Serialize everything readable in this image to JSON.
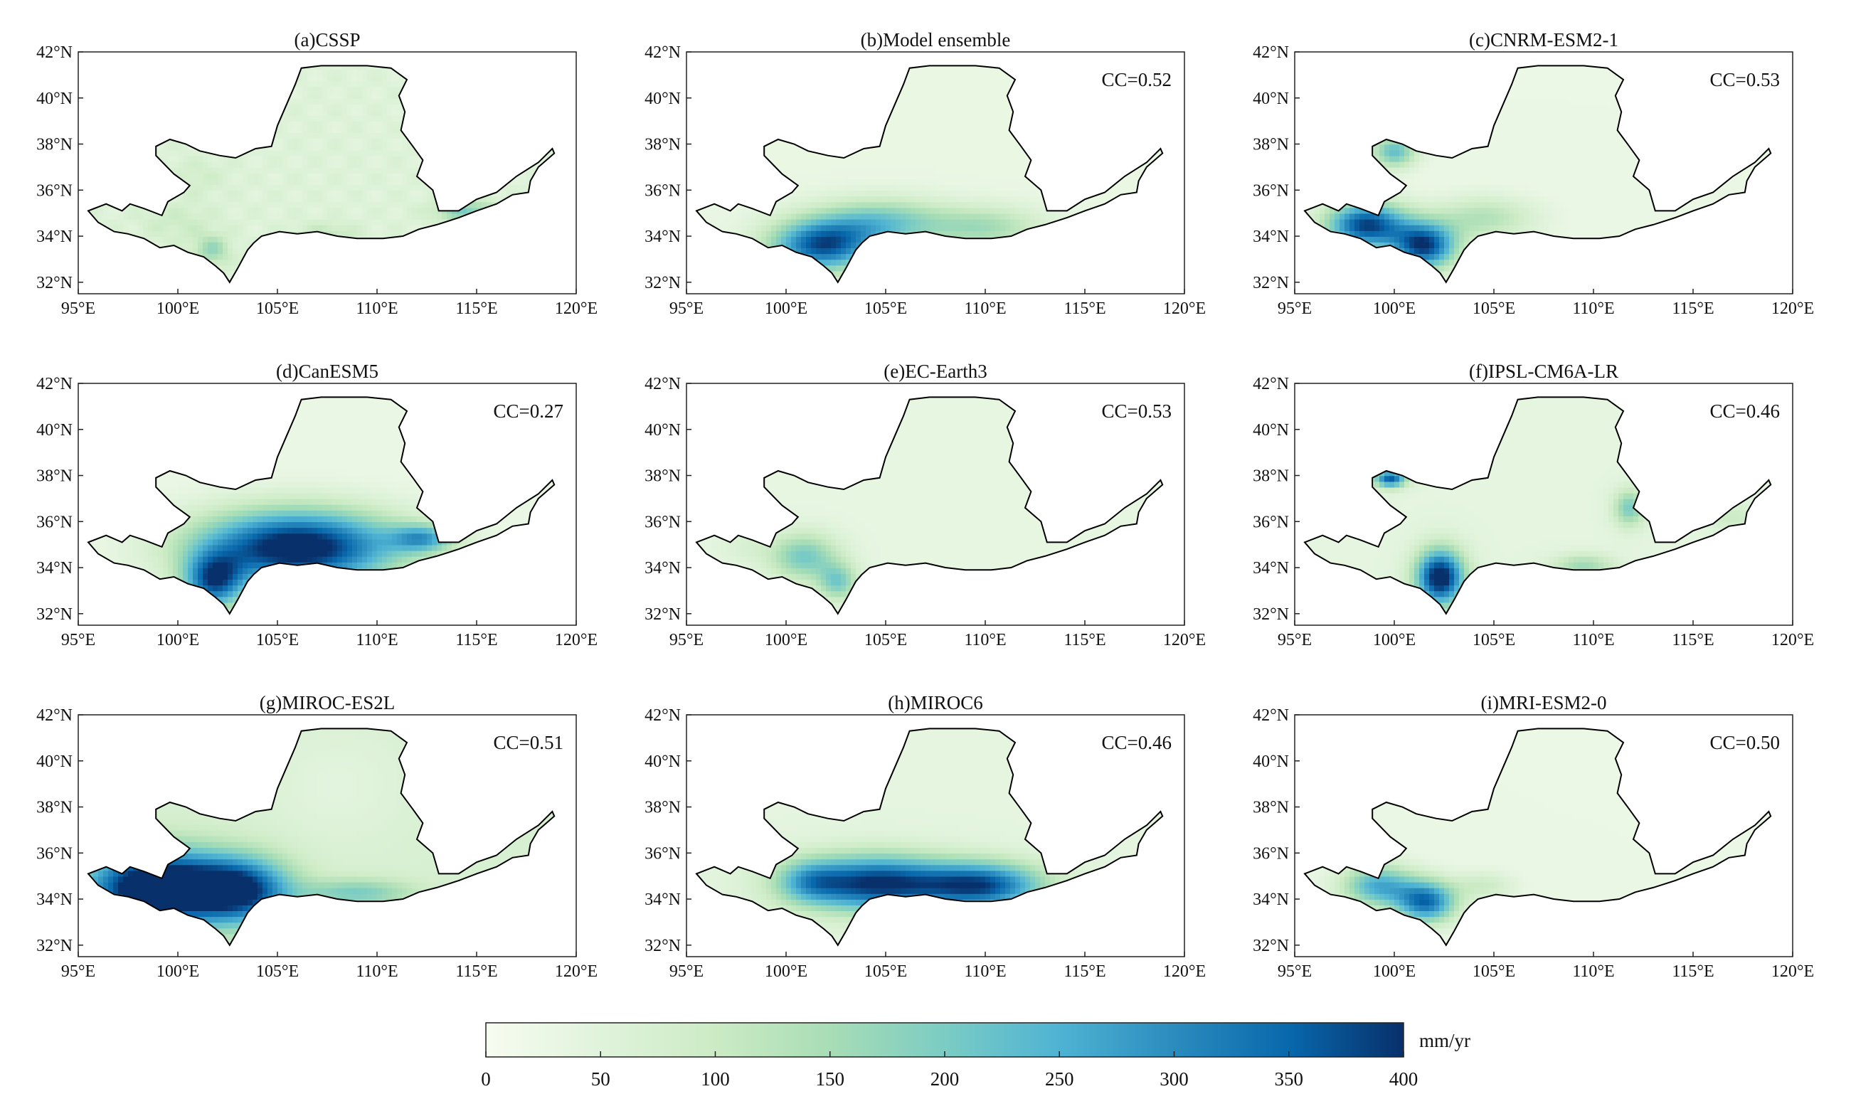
{
  "panels": [
    {
      "title": "(a)CSSP",
      "cc": "",
      "pattern": "obs"
    },
    {
      "title": "(b)Model ensemble",
      "cc": "CC=0.52",
      "pattern": "ensemble"
    },
    {
      "title": "(c)CNRM-ESM2-1",
      "cc": "CC=0.53",
      "pattern": "cnrm"
    },
    {
      "title": "(d)CanESM5",
      "cc": "CC=0.27",
      "pattern": "canesm"
    },
    {
      "title": "(e)EC-Earth3",
      "cc": "CC=0.53",
      "pattern": "ecearth"
    },
    {
      "title": "(f)IPSL-CM6A-LR",
      "cc": "CC=0.46",
      "pattern": "ipsl"
    },
    {
      "title": "(g)MIROC-ES2L",
      "cc": "CC=0.51",
      "pattern": "miroces2l"
    },
    {
      "title": "(h)MIROC6",
      "cc": "CC=0.46",
      "pattern": "miroc6"
    },
    {
      "title": "(i)MRI-ESM2-0",
      "cc": "CC=0.50",
      "pattern": "mri"
    }
  ],
  "axes": {
    "lon_ticks": [
      "95°E",
      "100°E",
      "105°E",
      "110°E",
      "115°E",
      "120°E"
    ],
    "lat_ticks": [
      "42°N",
      "40°N",
      "38°N",
      "36°N",
      "34°N",
      "32°N"
    ],
    "lon_range": [
      95,
      120
    ],
    "lat_range": [
      31.5,
      42
    ]
  },
  "colorbar": {
    "ticks": [
      "0",
      "50",
      "100",
      "150",
      "200",
      "250",
      "300",
      "350",
      "400"
    ],
    "unit": "mm/yr",
    "range": [
      0,
      400
    ],
    "colors": [
      "#f7fcf0",
      "#e0f3db",
      "#ccebc5",
      "#a8ddb5",
      "#7bccc4",
      "#4eb3d3",
      "#2b8cbe",
      "#0868ac",
      "#08306b"
    ]
  }
}
